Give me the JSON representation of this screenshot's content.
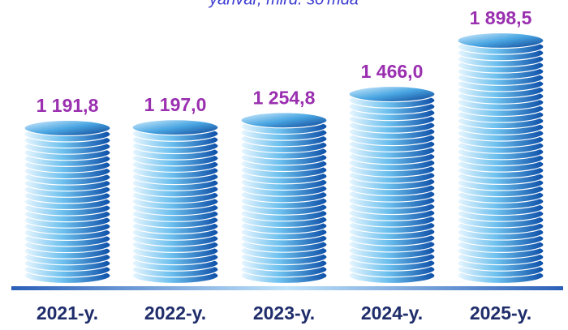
{
  "chart_data": {
    "type": "bar",
    "subtitle": "yanvar, mlrd. so'mda",
    "categories": [
      "2021-y.",
      "2022-y.",
      "2023-y.",
      "2024-y.",
      "2025-y."
    ],
    "values": [
      1191.8,
      1197.0,
      1254.8,
      1466.0,
      1898.5
    ],
    "value_labels": [
      "1 191,8",
      "1 197,0",
      "1 254,8",
      "1 466,0",
      "1 898,5"
    ],
    "color": "#1a6fc0"
  }
}
